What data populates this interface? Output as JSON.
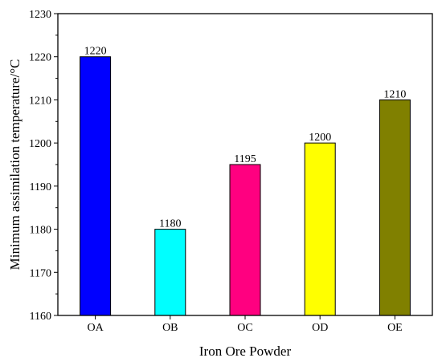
{
  "chart_data": {
    "type": "bar",
    "title": "",
    "xlabel": "Iron Ore Powder",
    "ylabel": "Minimum assimilation temperature/°C",
    "categories": [
      "OA",
      "OB",
      "OC",
      "OD",
      "OE"
    ],
    "values": [
      1220,
      1180,
      1195,
      1200,
      1210
    ],
    "value_labels": [
      "1220",
      "1180",
      "1195",
      "1200",
      "1210"
    ],
    "colors": [
      "#0000ff",
      "#00ffff",
      "#ff0080",
      "#ffff00",
      "#808000"
    ],
    "ylim": [
      1160,
      1230
    ],
    "yticks": [
      1160,
      1170,
      1180,
      1190,
      1200,
      1210,
      1220,
      1230
    ],
    "ytick_labels": [
      "1160",
      "1170",
      "1180",
      "1190",
      "1200",
      "1210",
      "1220",
      "1230"
    ],
    "grid": false,
    "legend": "none"
  }
}
